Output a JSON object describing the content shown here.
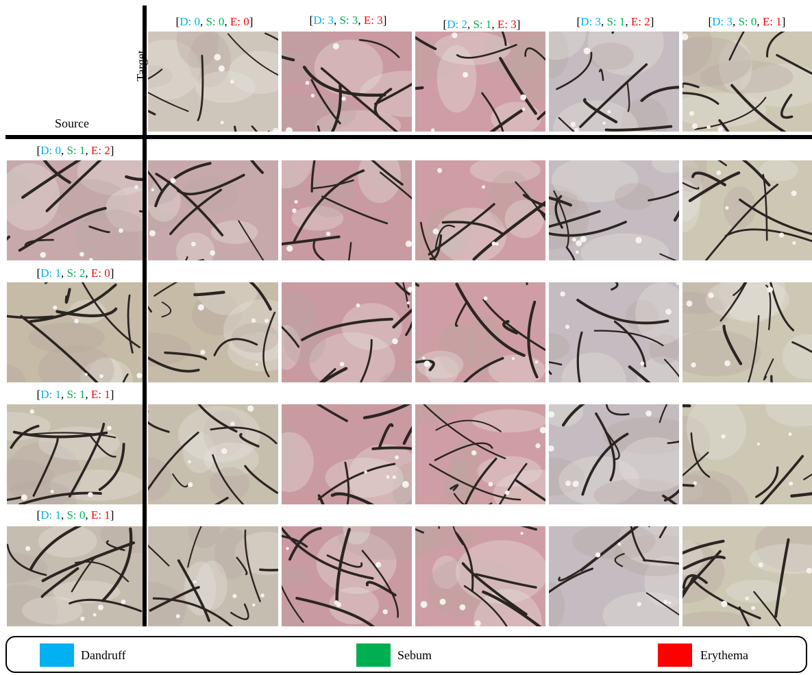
{
  "header": {
    "target_label": "Target",
    "source_label": "Source"
  },
  "colors": {
    "dandruff": "#00b0f0",
    "sebum": "#00b050",
    "erythema": "#ff0000",
    "skin_base": "#c9b8b0",
    "hair": "#2b2522"
  },
  "target_columns": [
    {
      "d": "D: 0",
      "s": "S: 0",
      "e": "E: 0"
    },
    {
      "d": "D: 3",
      "s": "S: 3",
      "e": "E: 3"
    },
    {
      "d": "D: 2",
      "s": "S: 1",
      "e": "E: 3"
    },
    {
      "d": "D: 3",
      "s": "S: 1",
      "e": "E: 2"
    },
    {
      "d": "D: 3",
      "s": "S: 0",
      "e": "E: 1"
    }
  ],
  "source_rows": [
    {
      "d": "D: 0",
      "s": "S: 1",
      "e": "E: 2"
    },
    {
      "d": "D: 1",
      "s": "S: 2",
      "e": "E: 0"
    },
    {
      "d": "D: 1",
      "s": "S: 1",
      "e": "E: 1"
    },
    {
      "d": "D: 1",
      "s": "S: 0",
      "e": "E: 1"
    }
  ],
  "legend": {
    "dandruff": "Dandruff",
    "sebum": "Sebum",
    "erythema": "Erythema"
  }
}
